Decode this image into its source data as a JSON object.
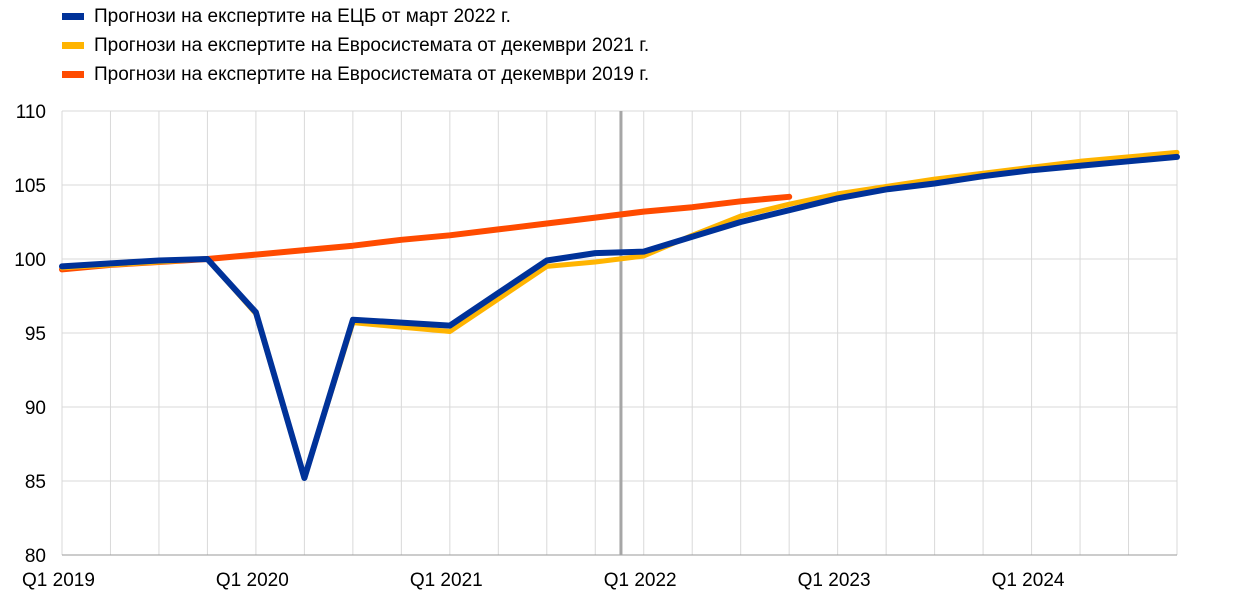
{
  "chart_data": {
    "type": "line",
    "x": [
      "Q1 2019",
      "Q2 2019",
      "Q3 2019",
      "Q4 2019",
      "Q1 2020",
      "Q2 2020",
      "Q3 2020",
      "Q4 2020",
      "Q1 2021",
      "Q2 2021",
      "Q3 2021",
      "Q4 2021",
      "Q1 2022",
      "Q2 2022",
      "Q3 2022",
      "Q4 2022",
      "Q1 2023",
      "Q2 2023",
      "Q3 2023",
      "Q4 2023",
      "Q1 2024",
      "Q2 2024",
      "Q3 2024",
      "Q4 2024"
    ],
    "x_tick_labels": [
      "Q1 2019",
      "",
      "",
      "",
      "Q1 2020",
      "",
      "",
      "",
      "Q1 2021",
      "",
      "",
      "",
      "Q1 2022",
      "",
      "",
      "",
      "Q1 2023",
      "",
      "",
      "",
      "Q1 2024",
      "",
      "",
      ""
    ],
    "y_tick_labels": [
      "80",
      "85",
      "90",
      "95",
      "100",
      "105",
      "110"
    ],
    "ylim": [
      80,
      110
    ],
    "grid": true,
    "legend_position": "top-left",
    "vertical_marker_between": [
      "Q4 2021",
      "Q1 2022"
    ],
    "series": [
      {
        "name": "Прогнози на експертите на ЕЦБ от март 2022 г.",
        "color": "#003299",
        "values": [
          99.5,
          99.7,
          99.9,
          100.0,
          96.4,
          85.2,
          95.9,
          95.7,
          95.5,
          97.7,
          99.9,
          100.4,
          100.5,
          101.5,
          102.5,
          103.3,
          104.1,
          104.7,
          105.1,
          105.6,
          106.0,
          106.3,
          106.6,
          106.9
        ]
      },
      {
        "name": "Прогнози на експертите на Евросистемата от декември 2021 г.",
        "color": "#FFB400",
        "values": [
          99.4,
          99.6,
          99.8,
          100.0,
          96.3,
          85.2,
          95.7,
          95.4,
          95.1,
          97.3,
          99.5,
          99.8,
          100.2,
          101.6,
          102.9,
          103.7,
          104.4,
          104.9,
          105.4,
          105.8,
          106.2,
          106.6,
          106.9,
          107.2
        ]
      },
      {
        "name": "Прогнози на експертите на Евросистемата от декември 2019 г.",
        "color": "#FF4B00",
        "values": [
          99.3,
          99.6,
          99.8,
          100.0,
          100.3,
          100.6,
          100.9,
          101.3,
          101.6,
          102.0,
          102.4,
          102.8,
          103.2,
          103.5,
          103.9,
          104.2,
          null,
          null,
          null,
          null,
          null,
          null,
          null,
          null
        ]
      }
    ]
  }
}
